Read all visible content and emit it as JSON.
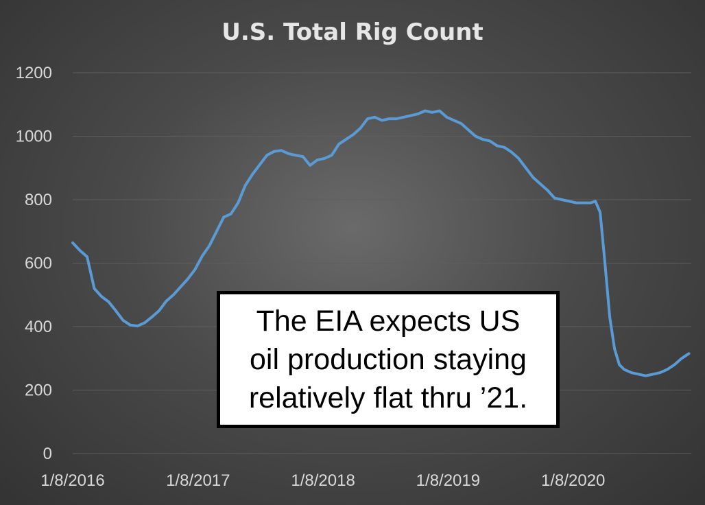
{
  "chart_data": {
    "type": "line",
    "title": "U.S. Total Rig Count",
    "xlabel": "",
    "ylabel": "",
    "ylim": [
      0,
      1200
    ],
    "yticks": [
      0,
      200,
      400,
      600,
      800,
      1000,
      1200
    ],
    "xticks": [
      "1/8/2016",
      "1/8/2017",
      "1/8/2018",
      "1/8/2019",
      "1/8/2020"
    ],
    "grid": true,
    "legend": "none",
    "series": [
      {
        "color": "#5b9bd5",
        "x": [
          "2016-01-08",
          "2016-01-29",
          "2016-02-19",
          "2016-03-11",
          "2016-04-01",
          "2016-04-22",
          "2016-05-13",
          "2016-06-03",
          "2016-06-24",
          "2016-07-15",
          "2016-08-05",
          "2016-08-26",
          "2016-09-16",
          "2016-10-07",
          "2016-10-28",
          "2016-11-18",
          "2016-12-09",
          "2016-12-30",
          "2017-01-20",
          "2017-02-10",
          "2017-03-03",
          "2017-03-24",
          "2017-04-14",
          "2017-05-05",
          "2017-05-26",
          "2017-06-16",
          "2017-07-07",
          "2017-07-28",
          "2017-08-18",
          "2017-09-08",
          "2017-09-29",
          "2017-10-20",
          "2017-11-10",
          "2017-12-01",
          "2017-12-22",
          "2018-01-12",
          "2018-02-02",
          "2018-02-23",
          "2018-03-16",
          "2018-04-06",
          "2018-04-27",
          "2018-05-18",
          "2018-06-08",
          "2018-06-29",
          "2018-07-20",
          "2018-08-10",
          "2018-08-31",
          "2018-09-21",
          "2018-10-12",
          "2018-11-02",
          "2018-11-23",
          "2018-12-14",
          "2019-01-04",
          "2019-01-25",
          "2019-02-15",
          "2019-03-08",
          "2019-03-29",
          "2019-04-19",
          "2019-05-10",
          "2019-05-31",
          "2019-06-21",
          "2019-07-12",
          "2019-08-02",
          "2019-08-23",
          "2019-09-13",
          "2019-10-04",
          "2019-10-25",
          "2019-11-15",
          "2019-12-06",
          "2019-12-27",
          "2020-01-17",
          "2020-02-07",
          "2020-02-28",
          "2020-03-13",
          "2020-03-27",
          "2020-04-10",
          "2020-04-24",
          "2020-05-08",
          "2020-05-22",
          "2020-06-05",
          "2020-06-26",
          "2020-07-17",
          "2020-08-07",
          "2020-08-28",
          "2020-09-18",
          "2020-10-09",
          "2020-10-30",
          "2020-11-20",
          "2020-12-11"
        ],
        "values": [
          664,
          640,
          620,
          520,
          495,
          478,
          450,
          420,
          405,
          402,
          412,
          430,
          450,
          480,
          500,
          525,
          550,
          580,
          622,
          655,
          700,
          745,
          755,
          790,
          845,
          880,
          910,
          940,
          952,
          955,
          945,
          940,
          936,
          908,
          925,
          930,
          940,
          975,
          990,
          1005,
          1025,
          1055,
          1060,
          1050,
          1055,
          1055,
          1060,
          1065,
          1070,
          1080,
          1075,
          1080,
          1060,
          1050,
          1040,
          1020,
          1000,
          990,
          985,
          970,
          965,
          950,
          930,
          900,
          870,
          850,
          830,
          805,
          800,
          795,
          790,
          790,
          790,
          795,
          760,
          600,
          430,
          330,
          280,
          265,
          255,
          250,
          245,
          250,
          255,
          265,
          280,
          300,
          315
        ]
      }
    ],
    "annotation": "The EIA expects US\noil production staying\nrelatively flat thru ’21."
  }
}
